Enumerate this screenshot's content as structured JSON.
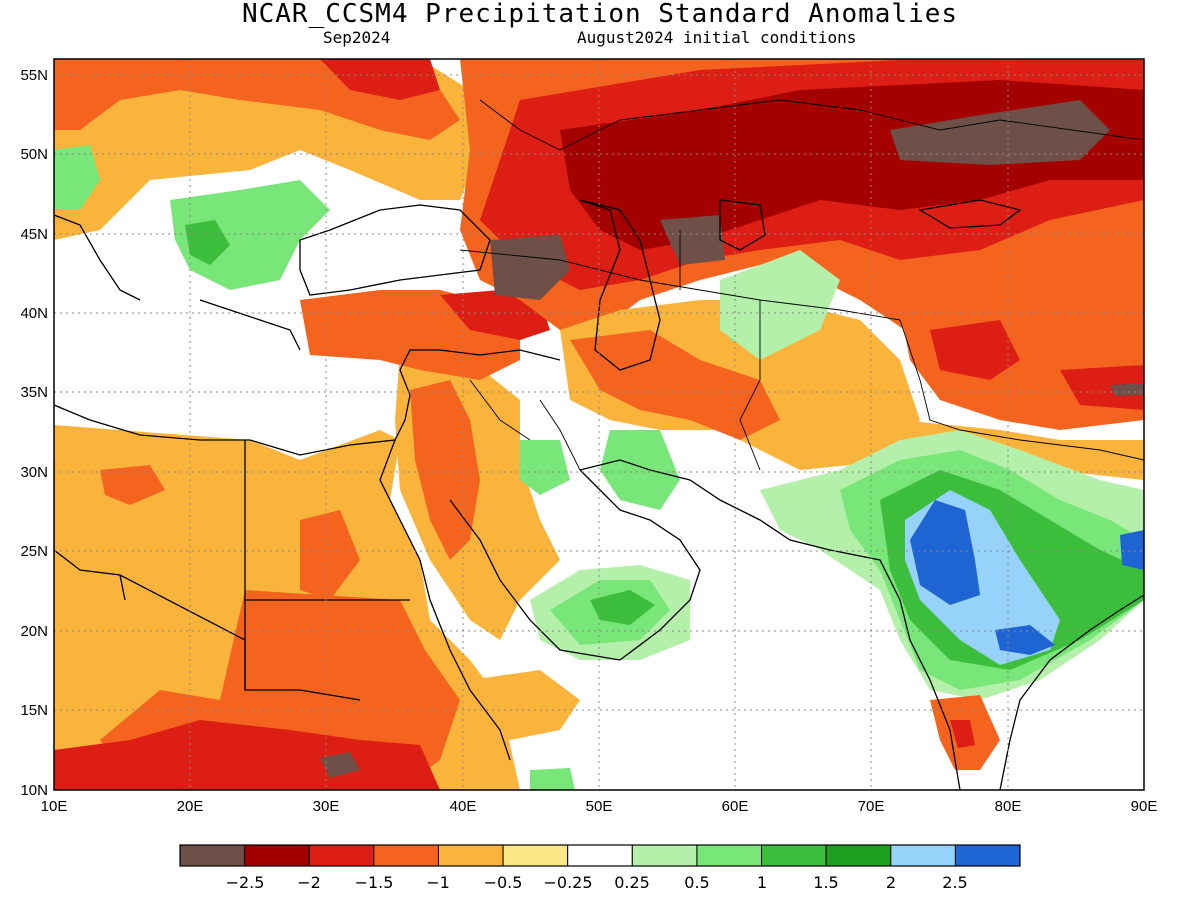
{
  "header": {
    "title": "NCAR_CCSM4 Precipitation Standard Anomalies",
    "valid_month": "Sep2024",
    "init_label": "August2024 initial conditions"
  },
  "map": {
    "lon_range": [
      10,
      90
    ],
    "lat_range": [
      10,
      56
    ],
    "lon_ticks": [
      "10E",
      "20E",
      "30E",
      "40E",
      "50E",
      "60E",
      "70E",
      "80E",
      "90E"
    ],
    "lat_ticks": [
      "10N",
      "15N",
      "20N",
      "25N",
      "30N",
      "35N",
      "40N",
      "45N",
      "50N",
      "55N"
    ],
    "grid": "dotted",
    "background": "#ffffff"
  },
  "colorbar": {
    "colors": [
      "#6e5048",
      "#a50000",
      "#dc1e14",
      "#f5641e",
      "#fab43c",
      "#fae682",
      "#ffffff",
      "#b4f0aa",
      "#78e678",
      "#3cbe3c",
      "#1e9f1e",
      "#96d2fa",
      "#1e64d2"
    ],
    "labels": [
      "−2.5",
      "−2",
      "−1.5",
      "−1",
      "−0.5",
      "−0.25",
      "0.25",
      "0.5",
      "1",
      "1.5",
      "2",
      "2.5"
    ]
  }
}
